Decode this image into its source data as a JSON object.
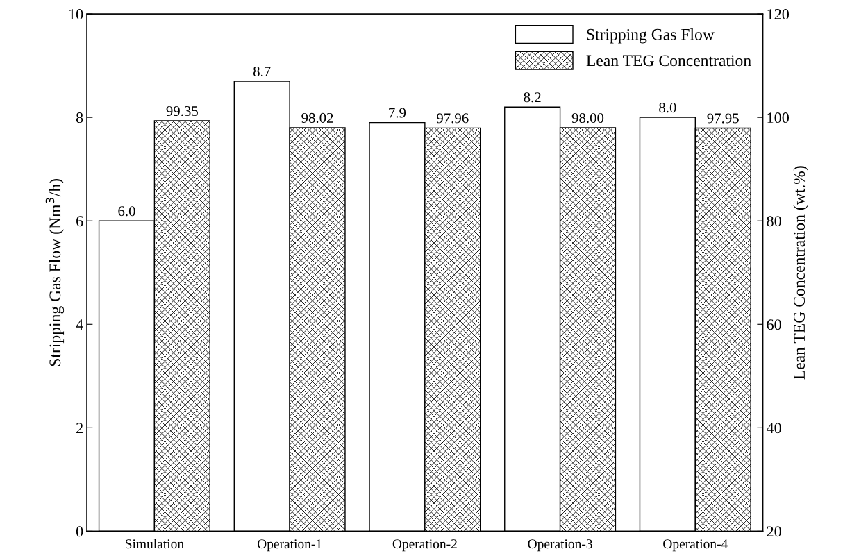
{
  "chart_data": {
    "type": "bar",
    "categories": [
      "Simulation",
      "Operation-1",
      "Operation-2",
      "Operation-3",
      "Operation-4"
    ],
    "ylabel": "Stripping Gas Flow (Nm$^{3}$/h)",
    "y2label": "Lean TEG Concentration (wt.%)",
    "series": [
      {
        "name": "Stripping Gas Flow",
        "color": "#ffffff",
        "values": [
          6.0,
          8.7,
          7.9,
          8.2,
          8.0
        ],
        "value_labels": [
          "6.0",
          "8.7",
          "7.9",
          "8.2",
          "8.0"
        ]
      },
      {
        "name": "Lean TEG Concentration",
        "color": "#000000",
        "axis": "y2",
        "values": [
          99.35,
          98.02,
          97.96,
          98.0,
          97.95
        ],
        "value_labels": [
          "99.35",
          "98.02",
          "97.96",
          "98.00",
          "97.95"
        ]
      }
    ],
    "ylim": [
      0,
      10
    ],
    "yticks": [
      0,
      2,
      4,
      6,
      8,
      10
    ],
    "y2lim": [
      20,
      120
    ],
    "y2ticks": [
      20,
      40,
      60,
      80,
      100,
      120
    ],
    "legend": "top right",
    "grid": false
  }
}
